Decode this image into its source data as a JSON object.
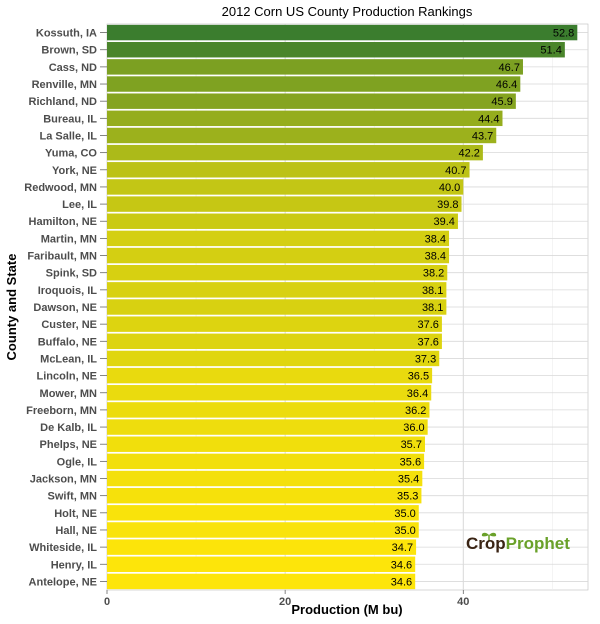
{
  "colors": {
    "bar_low": "#fde50a",
    "bar_high": "#3b7d2e",
    "grid_major": "#d9d9d9",
    "grid_minor": "#ececec",
    "logo_crop": "#3a2414",
    "logo_prophet": "#6aa12a"
  },
  "logo": {
    "part1": "Crop",
    "part2": "Prophet",
    "icon": "sprout-icon"
  },
  "chart_data": {
    "type": "bar",
    "orientation": "horizontal",
    "title": "2012 Corn US County Production Rankings",
    "xlabel": "Production (M bu)",
    "ylabel": "County and State",
    "xlim": [
      0,
      54
    ],
    "xticks": [
      0,
      20,
      40
    ],
    "xtick_labels": [
      "0",
      "20",
      "40"
    ],
    "grid": true,
    "categories": [
      "Kossuth, IA",
      "Brown, SD",
      "Cass, ND",
      "Renville, MN",
      "Richland, ND",
      "Bureau, IL",
      "La Salle, IL",
      "Yuma, CO",
      "York, NE",
      "Redwood, MN",
      "Lee, IL",
      "Hamilton, NE",
      "Martin, MN",
      "Faribault, MN",
      "Spink, SD",
      "Iroquois, IL",
      "Dawson, NE",
      "Custer, NE",
      "Buffalo, NE",
      "McLean, IL",
      "Lincoln, NE",
      "Mower, MN",
      "Freeborn, MN",
      "De Kalb, IL",
      "Phelps, NE",
      "Ogle, IL",
      "Jackson, MN",
      "Swift, MN",
      "Holt, NE",
      "Hall, NE",
      "Whiteside, IL",
      "Henry, IL",
      "Antelope, NE"
    ],
    "values": [
      52.8,
      51.4,
      46.7,
      46.4,
      45.9,
      44.4,
      43.7,
      42.2,
      40.7,
      40.0,
      39.8,
      39.4,
      38.4,
      38.4,
      38.2,
      38.1,
      38.1,
      37.6,
      37.6,
      37.3,
      36.5,
      36.4,
      36.2,
      36.0,
      35.7,
      35.6,
      35.4,
      35.3,
      35.0,
      35.0,
      34.7,
      34.6,
      34.6
    ],
    "value_labels": [
      "52.8",
      "51.4",
      "46.7",
      "46.4",
      "45.9",
      "44.4",
      "43.7",
      "42.2",
      "40.7",
      "40.0",
      "39.8",
      "39.4",
      "38.4",
      "38.4",
      "38.2",
      "38.1",
      "38.1",
      "37.6",
      "37.6",
      "37.3",
      "36.5",
      "36.4",
      "36.2",
      "36.0",
      "35.7",
      "35.6",
      "35.4",
      "35.3",
      "35.0",
      "35.0",
      "34.7",
      "34.6",
      "34.6"
    ]
  }
}
